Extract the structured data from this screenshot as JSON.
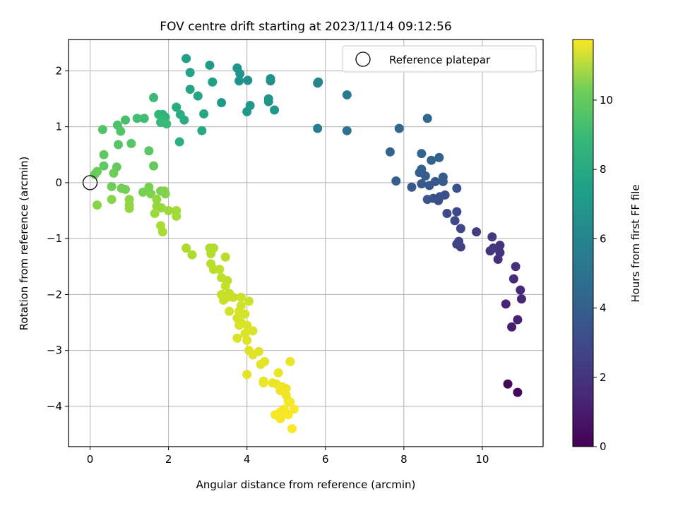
{
  "chart_data": {
    "type": "scatter",
    "title": "FOV centre drift starting at 2023/11/14 09:12:56",
    "xlabel": "Angular distance from reference (arcmin)",
    "ylabel": "Rotation from reference (arcmin)",
    "xlim": [
      -0.55,
      11.55
    ],
    "ylim": [
      -4.72,
      2.56
    ],
    "xticks": [
      0,
      2,
      4,
      6,
      8,
      10
    ],
    "xtick_labels": [
      "0",
      "2",
      "4",
      "6",
      "8",
      "10"
    ],
    "yticks": [
      -4,
      -3,
      -2,
      -1,
      0,
      1,
      2
    ],
    "ytick_labels": [
      "−4",
      "−3",
      "−2",
      "−1",
      "0",
      "1",
      "2"
    ],
    "grid": true,
    "legend": {
      "position": "upper right",
      "entries": [
        "Reference platepar"
      ]
    },
    "reference_point": {
      "x": 0,
      "y": 0,
      "label": "Reference platepar"
    },
    "colorbar": {
      "label": "Hours from first FF file",
      "colormap": "viridis",
      "range": [
        0,
        11.75
      ],
      "ticks": [
        0,
        2,
        4,
        6,
        8,
        10
      ],
      "tick_labels": [
        "0",
        "2",
        "4",
        "6",
        "8",
        "10"
      ]
    },
    "points": [
      {
        "x": 10.65,
        "y": -3.6,
        "h": 0.2
      },
      {
        "x": 10.9,
        "y": -3.75,
        "h": 0.3
      },
      {
        "x": 10.75,
        "y": -2.58,
        "h": 1.0
      },
      {
        "x": 10.9,
        "y": -2.45,
        "h": 1.1
      },
      {
        "x": 10.6,
        "y": -2.17,
        "h": 1.2
      },
      {
        "x": 11.0,
        "y": -2.08,
        "h": 1.2
      },
      {
        "x": 10.97,
        "y": -1.92,
        "h": 1.3
      },
      {
        "x": 10.8,
        "y": -1.72,
        "h": 1.4
      },
      {
        "x": 10.85,
        "y": -1.5,
        "h": 1.5
      },
      {
        "x": 10.4,
        "y": -1.37,
        "h": 1.6
      },
      {
        "x": 10.45,
        "y": -1.25,
        "h": 1.7
      },
      {
        "x": 10.2,
        "y": -1.22,
        "h": 1.8
      },
      {
        "x": 10.45,
        "y": -1.12,
        "h": 1.8
      },
      {
        "x": 10.28,
        "y": -1.17,
        "h": 1.9
      },
      {
        "x": 10.25,
        "y": -0.97,
        "h": 2.0
      },
      {
        "x": 9.85,
        "y": -0.88,
        "h": 2.1
      },
      {
        "x": 9.45,
        "y": -1.15,
        "h": 2.3
      },
      {
        "x": 9.35,
        "y": -1.1,
        "h": 2.3
      },
      {
        "x": 9.4,
        "y": -1.05,
        "h": 2.4
      },
      {
        "x": 9.45,
        "y": -0.82,
        "h": 2.5
      },
      {
        "x": 9.3,
        "y": -0.68,
        "h": 2.6
      },
      {
        "x": 9.35,
        "y": -0.52,
        "h": 2.6
      },
      {
        "x": 9.1,
        "y": -0.55,
        "h": 2.7
      },
      {
        "x": 8.88,
        "y": -0.32,
        "h": 2.8
      },
      {
        "x": 8.92,
        "y": -0.25,
        "h": 2.9
      },
      {
        "x": 9.05,
        "y": -0.22,
        "h": 2.9
      },
      {
        "x": 9.35,
        "y": -0.1,
        "h": 3.0
      },
      {
        "x": 8.75,
        "y": -0.28,
        "h": 3.0
      },
      {
        "x": 8.6,
        "y": -0.3,
        "h": 3.1
      },
      {
        "x": 8.2,
        "y": -0.08,
        "h": 3.2
      },
      {
        "x": 8.45,
        "y": -0.02,
        "h": 3.2
      },
      {
        "x": 8.65,
        "y": -0.05,
        "h": 3.3
      },
      {
        "x": 8.8,
        "y": 0.02,
        "h": 3.3
      },
      {
        "x": 9.0,
        "y": 0.02,
        "h": 3.4
      },
      {
        "x": 9.0,
        "y": 0.1,
        "h": 3.4
      },
      {
        "x": 8.55,
        "y": 0.12,
        "h": 3.5
      },
      {
        "x": 8.4,
        "y": 0.18,
        "h": 3.5
      },
      {
        "x": 8.45,
        "y": 0.24,
        "h": 3.6
      },
      {
        "x": 7.8,
        "y": 0.03,
        "h": 3.6
      },
      {
        "x": 8.7,
        "y": 0.4,
        "h": 3.7
      },
      {
        "x": 8.9,
        "y": 0.45,
        "h": 3.7
      },
      {
        "x": 8.45,
        "y": 0.52,
        "h": 3.8
      },
      {
        "x": 7.65,
        "y": 0.55,
        "h": 3.8
      },
      {
        "x": 7.88,
        "y": 0.97,
        "h": 3.9
      },
      {
        "x": 8.6,
        "y": 1.15,
        "h": 3.9
      },
      {
        "x": 6.55,
        "y": 0.93,
        "h": 4.4
      },
      {
        "x": 6.55,
        "y": 1.57,
        "h": 4.8
      },
      {
        "x": 5.8,
        "y": 0.97,
        "h": 5.0
      },
      {
        "x": 5.8,
        "y": 1.78,
        "h": 5.3
      },
      {
        "x": 5.82,
        "y": 1.8,
        "h": 5.4
      },
      {
        "x": 4.6,
        "y": 1.82,
        "h": 5.8
      },
      {
        "x": 4.6,
        "y": 1.86,
        "h": 5.9
      },
      {
        "x": 4.02,
        "y": 1.83,
        "h": 5.9
      },
      {
        "x": 3.8,
        "y": 1.82,
        "h": 6.0
      },
      {
        "x": 3.75,
        "y": 2.05,
        "h": 6.0
      },
      {
        "x": 3.82,
        "y": 1.95,
        "h": 6.1
      },
      {
        "x": 4.55,
        "y": 1.5,
        "h": 6.1
      },
      {
        "x": 4.55,
        "y": 1.45,
        "h": 6.2
      },
      {
        "x": 4.7,
        "y": 1.3,
        "h": 6.2
      },
      {
        "x": 4.08,
        "y": 1.38,
        "h": 6.3
      },
      {
        "x": 4.0,
        "y": 1.27,
        "h": 6.3
      },
      {
        "x": 3.35,
        "y": 1.43,
        "h": 6.4
      },
      {
        "x": 3.05,
        "y": 2.1,
        "h": 6.5
      },
      {
        "x": 3.12,
        "y": 1.8,
        "h": 6.6
      },
      {
        "x": 2.45,
        "y": 2.22,
        "h": 6.7
      },
      {
        "x": 2.55,
        "y": 1.97,
        "h": 6.8
      },
      {
        "x": 2.55,
        "y": 1.67,
        "h": 6.9
      },
      {
        "x": 2.75,
        "y": 1.55,
        "h": 6.9
      },
      {
        "x": 2.9,
        "y": 1.23,
        "h": 7.0
      },
      {
        "x": 2.85,
        "y": 0.93,
        "h": 7.1
      },
      {
        "x": 2.2,
        "y": 1.35,
        "h": 7.2
      },
      {
        "x": 2.3,
        "y": 1.22,
        "h": 7.3
      },
      {
        "x": 2.4,
        "y": 1.12,
        "h": 7.3
      },
      {
        "x": 2.28,
        "y": 0.73,
        "h": 7.4
      },
      {
        "x": 1.85,
        "y": 1.22,
        "h": 7.6
      },
      {
        "x": 1.92,
        "y": 1.17,
        "h": 7.7
      },
      {
        "x": 1.75,
        "y": 1.22,
        "h": 7.8
      },
      {
        "x": 1.8,
        "y": 1.08,
        "h": 7.9
      },
      {
        "x": 1.95,
        "y": 1.05,
        "h": 8.0
      },
      {
        "x": 1.62,
        "y": 1.52,
        "h": 8.0
      },
      {
        "x": 1.38,
        "y": 1.15,
        "h": 8.1
      },
      {
        "x": 1.2,
        "y": 1.15,
        "h": 8.2
      },
      {
        "x": 0.9,
        "y": 1.12,
        "h": 8.3
      },
      {
        "x": 0.7,
        "y": 1.03,
        "h": 8.4
      },
      {
        "x": 0.78,
        "y": 0.92,
        "h": 8.5
      },
      {
        "x": 0.32,
        "y": 0.95,
        "h": 8.5
      },
      {
        "x": 0.72,
        "y": 0.68,
        "h": 8.6
      },
      {
        "x": 1.05,
        "y": 0.7,
        "h": 8.6
      },
      {
        "x": 1.5,
        "y": 0.57,
        "h": 8.7
      },
      {
        "x": 0.35,
        "y": 0.5,
        "h": 8.8
      },
      {
        "x": 0.35,
        "y": 0.3,
        "h": 8.8
      },
      {
        "x": 0.68,
        "y": 0.28,
        "h": 8.9
      },
      {
        "x": 1.62,
        "y": 0.3,
        "h": 8.9
      },
      {
        "x": 0.18,
        "y": 0.2,
        "h": 9.0
      },
      {
        "x": 0.12,
        "y": 0.15,
        "h": 9.0
      },
      {
        "x": 0.6,
        "y": 0.17,
        "h": 9.1
      },
      {
        "x": 0.55,
        "y": -0.07,
        "h": 9.1
      },
      {
        "x": 0.8,
        "y": -0.1,
        "h": 9.2
      },
      {
        "x": 0.9,
        "y": -0.12,
        "h": 9.2
      },
      {
        "x": 1.35,
        "y": -0.17,
        "h": 9.3
      },
      {
        "x": 1.5,
        "y": -0.08,
        "h": 9.3
      },
      {
        "x": 1.55,
        "y": -0.2,
        "h": 9.4
      },
      {
        "x": 1.8,
        "y": -0.15,
        "h": 9.4
      },
      {
        "x": 1.92,
        "y": -0.2,
        "h": 9.5
      },
      {
        "x": 1.9,
        "y": -0.15,
        "h": 9.5
      },
      {
        "x": 0.55,
        "y": -0.3,
        "h": 9.6
      },
      {
        "x": 0.18,
        "y": -0.4,
        "h": 9.6
      },
      {
        "x": 1.0,
        "y": -0.3,
        "h": 9.7
      },
      {
        "x": 1.0,
        "y": -0.4,
        "h": 9.7
      },
      {
        "x": 1.0,
        "y": -0.46,
        "h": 9.8
      },
      {
        "x": 1.7,
        "y": -0.3,
        "h": 9.8
      },
      {
        "x": 1.7,
        "y": -0.42,
        "h": 9.9
      },
      {
        "x": 1.82,
        "y": -0.45,
        "h": 9.9
      },
      {
        "x": 1.65,
        "y": -0.55,
        "h": 10.0
      },
      {
        "x": 2.0,
        "y": -0.5,
        "h": 10.0
      },
      {
        "x": 2.2,
        "y": -0.5,
        "h": 10.1
      },
      {
        "x": 2.2,
        "y": -0.6,
        "h": 10.1
      },
      {
        "x": 1.8,
        "y": -0.77,
        "h": 10.2
      },
      {
        "x": 1.85,
        "y": -0.88,
        "h": 10.2
      },
      {
        "x": 2.45,
        "y": -1.17,
        "h": 10.3
      },
      {
        "x": 2.6,
        "y": -1.29,
        "h": 10.3
      },
      {
        "x": 3.05,
        "y": -1.17,
        "h": 10.4
      },
      {
        "x": 3.15,
        "y": -1.17,
        "h": 10.4
      },
      {
        "x": 3.08,
        "y": -1.27,
        "h": 10.4
      },
      {
        "x": 3.45,
        "y": -1.33,
        "h": 10.5
      },
      {
        "x": 3.08,
        "y": -1.45,
        "h": 10.5
      },
      {
        "x": 3.15,
        "y": -1.55,
        "h": 10.5
      },
      {
        "x": 3.3,
        "y": -1.55,
        "h": 10.6
      },
      {
        "x": 3.35,
        "y": -1.7,
        "h": 10.6
      },
      {
        "x": 3.5,
        "y": -1.75,
        "h": 10.6
      },
      {
        "x": 3.45,
        "y": -1.85,
        "h": 10.7
      },
      {
        "x": 3.55,
        "y": -1.98,
        "h": 10.7
      },
      {
        "x": 3.35,
        "y": -2.0,
        "h": 10.7
      },
      {
        "x": 3.5,
        "y": -2.05,
        "h": 10.8
      },
      {
        "x": 3.4,
        "y": -2.1,
        "h": 10.8
      },
      {
        "x": 3.65,
        "y": -2.05,
        "h": 10.8
      },
      {
        "x": 3.85,
        "y": -2.05,
        "h": 10.9
      },
      {
        "x": 3.85,
        "y": -2.2,
        "h": 10.9
      },
      {
        "x": 4.05,
        "y": -2.12,
        "h": 10.9
      },
      {
        "x": 3.55,
        "y": -2.3,
        "h": 11.0
      },
      {
        "x": 3.8,
        "y": -2.3,
        "h": 11.0
      },
      {
        "x": 3.95,
        "y": -2.35,
        "h": 11.0
      },
      {
        "x": 3.75,
        "y": -2.42,
        "h": 11.0
      },
      {
        "x": 3.85,
        "y": -2.5,
        "h": 11.0
      },
      {
        "x": 4.0,
        "y": -2.55,
        "h": 11.1
      },
      {
        "x": 3.8,
        "y": -2.55,
        "h": 11.1
      },
      {
        "x": 4.15,
        "y": -2.65,
        "h": 11.1
      },
      {
        "x": 3.95,
        "y": -2.7,
        "h": 11.1
      },
      {
        "x": 3.75,
        "y": -2.78,
        "h": 11.1
      },
      {
        "x": 4.0,
        "y": -2.82,
        "h": 11.2
      },
      {
        "x": 4.05,
        "y": -3.0,
        "h": 11.2
      },
      {
        "x": 4.3,
        "y": -3.02,
        "h": 11.2
      },
      {
        "x": 4.15,
        "y": -3.08,
        "h": 11.2
      },
      {
        "x": 4.45,
        "y": -3.2,
        "h": 11.3
      },
      {
        "x": 4.35,
        "y": -3.25,
        "h": 11.3
      },
      {
        "x": 4.0,
        "y": -3.43,
        "h": 11.3
      },
      {
        "x": 4.42,
        "y": -3.55,
        "h": 11.3
      },
      {
        "x": 4.42,
        "y": -3.58,
        "h": 11.4
      },
      {
        "x": 4.8,
        "y": -3.4,
        "h": 11.4
      },
      {
        "x": 5.1,
        "y": -3.2,
        "h": 11.4
      },
      {
        "x": 4.65,
        "y": -3.58,
        "h": 11.4
      },
      {
        "x": 4.75,
        "y": -3.6,
        "h": 11.4
      },
      {
        "x": 4.9,
        "y": -3.65,
        "h": 11.5
      },
      {
        "x": 4.85,
        "y": -3.72,
        "h": 11.5
      },
      {
        "x": 5.0,
        "y": -3.68,
        "h": 11.5
      },
      {
        "x": 5.0,
        "y": -3.8,
        "h": 11.5
      },
      {
        "x": 5.05,
        "y": -3.9,
        "h": 11.5
      },
      {
        "x": 5.1,
        "y": -3.92,
        "h": 11.6
      },
      {
        "x": 4.95,
        "y": -4.05,
        "h": 11.6
      },
      {
        "x": 4.72,
        "y": -4.15,
        "h": 11.6
      },
      {
        "x": 4.85,
        "y": -4.1,
        "h": 11.6
      },
      {
        "x": 4.85,
        "y": -4.22,
        "h": 11.6
      },
      {
        "x": 5.05,
        "y": -4.15,
        "h": 11.7
      },
      {
        "x": 5.2,
        "y": -4.05,
        "h": 11.7
      },
      {
        "x": 5.15,
        "y": -4.4,
        "h": 11.7
      }
    ]
  }
}
